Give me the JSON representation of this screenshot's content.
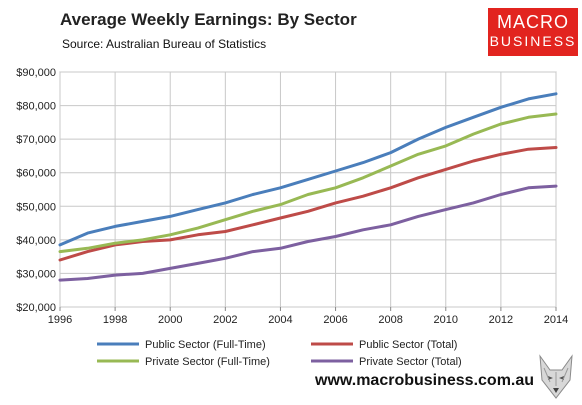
{
  "header": {
    "title": "Average Weekly Earnings: By Sector",
    "subtitle": "Source: Australian Bureau of Statistics"
  },
  "logo": {
    "line1": "MACRO",
    "line2": "BUSINESS",
    "color": "#e2241f"
  },
  "footer": {
    "url": "www.macrobusiness.com.au"
  },
  "chart_data": {
    "type": "line",
    "title": "Average Weekly Earnings: By Sector",
    "xlabel": "",
    "ylabel": "",
    "xlim": [
      1996,
      2014
    ],
    "ylim": [
      20000,
      90000
    ],
    "grid": true,
    "legend_position": "bottom",
    "x_ticks": [
      "1996",
      "1998",
      "2000",
      "2002",
      "2004",
      "2006",
      "2008",
      "2010",
      "2012",
      "2014"
    ],
    "x_tick_values": [
      1996,
      1998,
      2000,
      2002,
      2004,
      2006,
      2008,
      2010,
      2012,
      2014
    ],
    "y_ticks": [
      "$20,000",
      "$30,000",
      "$40,000",
      "$50,000",
      "$60,000",
      "$70,000",
      "$80,000",
      "$90,000"
    ],
    "y_tick_values": [
      20000,
      30000,
      40000,
      50000,
      60000,
      70000,
      80000,
      90000
    ],
    "x": [
      1996,
      1997,
      1998,
      1999,
      2000,
      2001,
      2002,
      2003,
      2004,
      2005,
      2006,
      2007,
      2008,
      2009,
      2010,
      2011,
      2012,
      2013,
      2014
    ],
    "series": [
      {
        "name": "Public Sector (Full-Time)",
        "color": "#4a7ebb",
        "values": [
          38500,
          42000,
          44000,
          45500,
          47000,
          49000,
          51000,
          53500,
          55500,
          58000,
          60500,
          63000,
          66000,
          70000,
          73500,
          76500,
          79500,
          82000,
          83500
        ]
      },
      {
        "name": "Public Sector (Total)",
        "color": "#be4b48",
        "values": [
          34000,
          36500,
          38500,
          39500,
          40000,
          41500,
          42500,
          44500,
          46500,
          48500,
          51000,
          53000,
          55500,
          58500,
          61000,
          63500,
          65500,
          67000,
          67500
        ]
      },
      {
        "name": "Private Sector (Full-Time)",
        "color": "#98b954",
        "values": [
          36500,
          37500,
          39000,
          40000,
          41500,
          43500,
          46000,
          48500,
          50500,
          53500,
          55500,
          58500,
          62000,
          65500,
          68000,
          71500,
          74500,
          76500,
          77500
        ]
      },
      {
        "name": "Private Sector (Total)",
        "color": "#7d60a0",
        "values": [
          28000,
          28500,
          29500,
          30000,
          31500,
          33000,
          34500,
          36500,
          37500,
          39500,
          41000,
          43000,
          44500,
          47000,
          49000,
          51000,
          53500,
          55500,
          56000
        ]
      }
    ]
  }
}
